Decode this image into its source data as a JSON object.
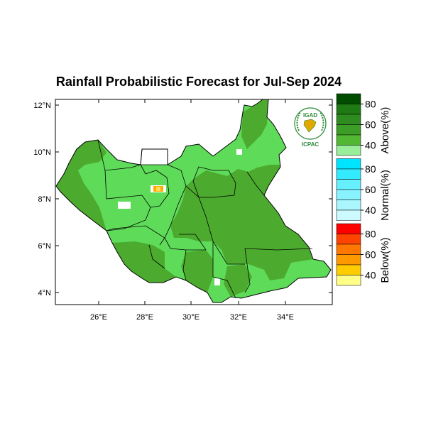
{
  "title": "Rainfall Probabilistic Forecast for Jul-Sep 2024",
  "map": {
    "lat_ticks": [
      "12°N",
      "10°N",
      "8°N",
      "6°N",
      "4°N"
    ],
    "lon_ticks": [
      "26°E",
      "28°E",
      "30°E",
      "32°E",
      "34°E"
    ],
    "lat_range": [
      3.5,
      12.5
    ],
    "lon_range": [
      24,
      36
    ]
  },
  "logo": {
    "top_text": "IGAD",
    "bottom_text": "ICPAC"
  },
  "colorbar": {
    "groups": [
      {
        "name": "Above(%)",
        "ticks": [
          "80",
          "60",
          "40"
        ],
        "colors": [
          "#004d00",
          "#1e7a12",
          "#2e8b1f",
          "#3d9e27",
          "#52b833",
          "#99ee99"
        ]
      },
      {
        "name": "Normal(%)",
        "ticks": [
          "80",
          "60",
          "40"
        ],
        "colors": [
          "#00e5ff",
          "#33eaff",
          "#66efff",
          "#88f2ff",
          "#aaf6ff",
          "#ccfaff"
        ]
      },
      {
        "name": "Below(%)",
        "ticks": [
          "80",
          "60",
          "40"
        ],
        "colors": [
          "#ff0000",
          "#ff4400",
          "#ff7700",
          "#ff9900",
          "#ffcc00",
          "#ffff88"
        ]
      }
    ]
  },
  "palette": {
    "light_green": "#5fdb5a",
    "dark_green": "#4caa2f",
    "white": "#ffffff",
    "orange": "#ffaa00",
    "yellow": "#ffdd55"
  }
}
